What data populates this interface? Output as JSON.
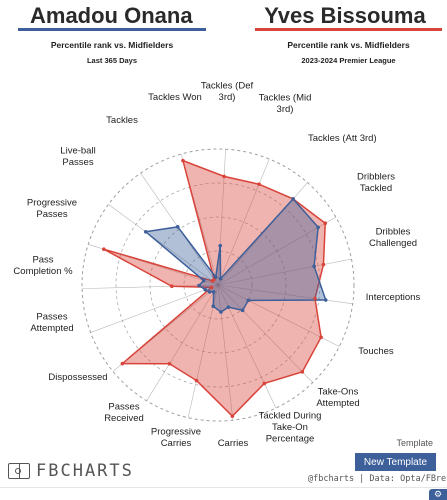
{
  "header": {
    "player_a": "Amadou Onana",
    "player_b": "Yves Bissouma",
    "subtitle_a": "Percentile rank vs. Midfielders",
    "subtitle_b": "Percentile rank vs. Midfielders",
    "period_a": "Last 365 Days",
    "period_b": "2023-2024 Premier League"
  },
  "colors": {
    "player_a": "#3d5f9a",
    "player_b": "#d9443a",
    "grid": "#888888"
  },
  "chart_data": {
    "type": "radar",
    "rmax": 100,
    "categories": [
      "Tackles (Def 3rd)",
      "Tackles (Mid 3rd)",
      "Tackles (Att 3rd)",
      "Dribblers Tackled",
      "Dribbles Challenged",
      "Interceptions",
      "Touches",
      "Take-Ons Attempted",
      "Tackled During Take-On Percentage",
      "Carries",
      "Progressive Carries",
      "Passes Received",
      "Dispossessed",
      "Passes Attempted",
      "Pass Completion %",
      "Progressive Passes",
      "Live-ball Passes",
      "Tackles",
      "Tackles Won"
    ],
    "series": [
      {
        "name": "Amadou Onana",
        "color": "#3d5f9a",
        "values": [
          72,
          80,
          25,
          26,
          18,
          20,
          16,
          6,
          8,
          10,
          14,
          11,
          66,
          52,
          6,
          29,
          5,
          84,
          85
        ]
      },
      {
        "name": "Yves Bissouma",
        "color": "#d9443a",
        "values": [
          79,
          72,
          85,
          89,
          80,
          97,
          72,
          68,
          91,
          5,
          34,
          88,
          5,
          5,
          95,
          80,
          80,
          84,
          91
        ]
      }
    ]
  },
  "footer": {
    "brand": "FBCHARTS",
    "template_label": "Template",
    "new_template": "New Template",
    "credit": "@fbcharts | Data: Opta/FBref"
  }
}
